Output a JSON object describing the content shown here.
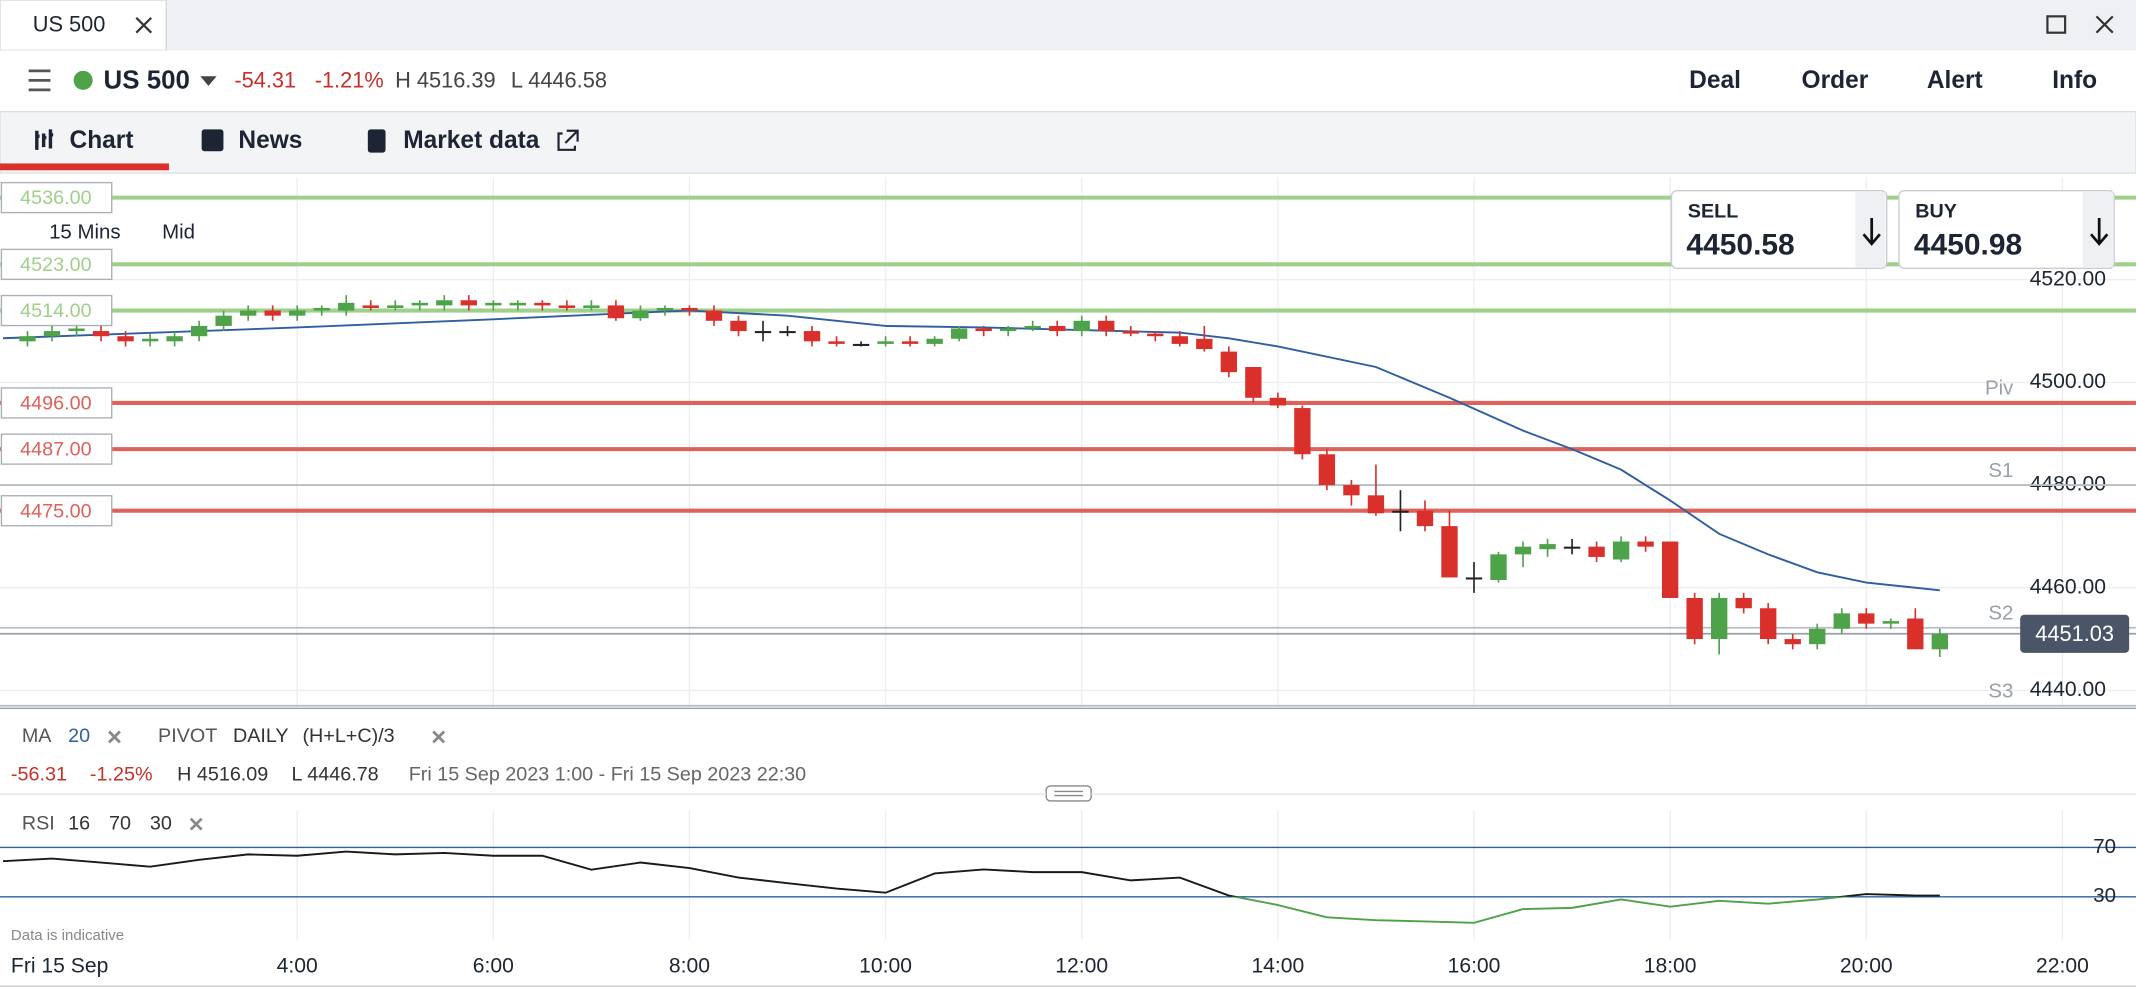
{
  "window": {
    "tab": "US 500"
  },
  "header": {
    "market": "US 500",
    "change": "-54.31",
    "change_pct": "-1.21%",
    "high": "H 4516.39",
    "low": "L 4446.58",
    "actions": [
      "Deal",
      "Order",
      "Alert",
      "Info"
    ]
  },
  "tabs": [
    "Chart",
    "News",
    "Market data"
  ],
  "chart_data": [
    {
      "type": "candlestick",
      "interval": "15 Mins",
      "price_type": "Mid",
      "up_color": "#4ea24a",
      "down_color": "#d9302c",
      "doji_color": "#222222",
      "x": [
        1.25,
        1.5,
        1.75,
        2,
        2.25,
        2.5,
        2.75,
        3,
        3.25,
        3.5,
        3.75,
        4,
        4.25,
        4.5,
        4.75,
        5,
        5.25,
        5.5,
        5.75,
        6,
        6.25,
        6.5,
        6.75,
        7,
        7.25,
        7.5,
        7.75,
        8,
        8.25,
        8.5,
        8.75,
        9,
        9.25,
        9.5,
        9.75,
        10,
        10.25,
        10.5,
        10.75,
        11,
        11.25,
        11.5,
        11.75,
        12,
        12.25,
        12.5,
        12.75,
        13,
        13.25,
        13.5,
        13.75,
        14,
        14.25,
        14.5,
        14.75,
        15,
        15.25,
        15.5,
        15.75,
        16,
        16.25,
        16.5,
        16.75,
        17,
        17.25,
        17.5,
        17.75,
        18,
        18.25,
        18.5,
        18.75,
        19,
        19.25,
        19.5,
        19.75,
        20,
        20.25,
        20.5,
        20.75
      ],
      "open": [
        4508,
        4509,
        4510,
        4510,
        4509,
        4508,
        4508,
        4509,
        4511,
        4513,
        4514,
        4513,
        4514,
        4514,
        4515,
        4514.5,
        4515,
        4515,
        4516,
        4515,
        4515,
        4515.5,
        4515,
        4514.5,
        4515,
        4512.5,
        4514,
        4514.5,
        4514,
        4512,
        4510,
        4510,
        4510,
        4508,
        4507.5,
        4507.5,
        4508,
        4507.5,
        4508.5,
        4510.5,
        4510,
        4510.5,
        4511,
        4510,
        4512,
        4510,
        4509.5,
        4509,
        4508.5,
        4506,
        4503,
        4497,
        4495,
        4486,
        4480,
        4478,
        4475,
        4475,
        4472,
        4462,
        4461.5,
        4466.5,
        4467.5,
        4468,
        4468,
        4465.5,
        4469,
        4469,
        4458,
        4450,
        4458,
        4456,
        4450,
        4449,
        4452,
        4455,
        4453,
        4454,
        4448
      ],
      "high": [
        4510,
        4511,
        4511,
        4511,
        4510,
        4509.5,
        4510,
        4512,
        4514,
        4515,
        4515,
        4515,
        4515,
        4517,
        4516,
        4516,
        4516,
        4517,
        4517,
        4516,
        4516,
        4516,
        4516,
        4516,
        4516,
        4515,
        4515,
        4515,
        4515,
        4513,
        4512,
        4511,
        4511,
        4509,
        4508,
        4509,
        4509,
        4509,
        4511,
        4511,
        4511,
        4512,
        4512,
        4513,
        4513,
        4511,
        4510,
        4510,
        4511,
        4507,
        4503,
        4498,
        4495.5,
        4487,
        4481,
        4484,
        4479,
        4477,
        4475,
        4465,
        4467,
        4469,
        4469.5,
        4469.5,
        4469,
        4470,
        4470,
        4469,
        4459,
        4459,
        4459,
        4457,
        4451,
        4453,
        4456,
        4456,
        4454,
        4456,
        4452
      ],
      "low": [
        4507,
        4508,
        4509,
        4508,
        4507,
        4507,
        4507,
        4508,
        4510,
        4512,
        4512,
        4512,
        4513,
        4513,
        4514,
        4514,
        4514,
        4514,
        4514,
        4514,
        4514,
        4514,
        4514,
        4514,
        4512,
        4512,
        4513,
        4513,
        4511,
        4509,
        4508,
        4509,
        4507,
        4507,
        4507,
        4507,
        4507,
        4507,
        4508,
        4509,
        4509,
        4510,
        4509,
        4509,
        4509,
        4509,
        4508,
        4507,
        4506,
        4501,
        4496,
        4495,
        4485,
        4479,
        4476,
        4474,
        4471,
        4471,
        4462,
        4459,
        4461,
        4464,
        4466,
        4466.5,
        4465,
        4465,
        4467,
        4458,
        4449,
        4447,
        4455,
        4449,
        4448,
        4448,
        4451,
        4452,
        4452,
        4448,
        4446.5
      ],
      "close": [
        4509,
        4510,
        4510.5,
        4509,
        4508,
        4508.5,
        4509,
        4511,
        4513,
        4514,
        4513,
        4514,
        4514.5,
        4515.5,
        4514.5,
        4515,
        4515.5,
        4516,
        4515,
        4515.5,
        4515.5,
        4515,
        4514.5,
        4515,
        4512.5,
        4514,
        4514.5,
        4514,
        4512,
        4510,
        4510,
        4510,
        4508,
        4507.5,
        4507.5,
        4508,
        4507.5,
        4508.5,
        4510.5,
        4510,
        4510.5,
        4511,
        4510,
        4512,
        4510,
        4509.5,
        4509,
        4507.5,
        4506.5,
        4502,
        4497,
        4495.5,
        4486,
        4480,
        4478,
        4474.5,
        4475,
        4472,
        4462,
        4462,
        4466.5,
        4468,
        4468.5,
        4468,
        4466,
        4469,
        4468,
        4458,
        4450,
        4458,
        4456,
        4450,
        4449,
        4452,
        4455,
        4453,
        4453.5,
        4448,
        4451
      ],
      "xlim": [
        0.97,
        22.75
      ],
      "xticks": [
        {
          "value": 4,
          "label": "4:00"
        },
        {
          "value": 6,
          "label": "6:00"
        },
        {
          "value": 8,
          "label": "8:00"
        },
        {
          "value": 10,
          "label": "10:00"
        },
        {
          "value": 12,
          "label": "12:00"
        },
        {
          "value": 14,
          "label": "14:00"
        },
        {
          "value": 16,
          "label": "16:00"
        },
        {
          "value": 18,
          "label": "18:00"
        },
        {
          "value": 20,
          "label": "20:00"
        },
        {
          "value": 22,
          "label": "22:00"
        }
      ],
      "ylim": [
        4436.5,
        4540
      ],
      "yticks": [
        {
          "value": 4440,
          "label": "4440.00"
        },
        {
          "value": 4460,
          "label": "4460.00"
        },
        {
          "value": 4480,
          "label": "4480.00"
        },
        {
          "value": 4500,
          "label": "4500.00"
        },
        {
          "value": 4520,
          "label": "4520.00"
        }
      ],
      "grid": true,
      "ma": {
        "name": "MA",
        "period": 20,
        "color": "#2f5f9e",
        "x": [
          1,
          4,
          6,
          7.5,
          8,
          9,
          10,
          11,
          12,
          13,
          13.5,
          14,
          15,
          15.75,
          16.5,
          17,
          17.5,
          18,
          18.5,
          19,
          19.5,
          20,
          20.75
        ],
        "values": [
          4508.6,
          4510.7,
          4512.3,
          4513.6,
          4514,
          4513,
          4511,
          4510.7,
          4510.2,
          4509.7,
          4508.6,
          4507,
          4503,
          4497,
          4490.6,
          4487,
          4483,
          4477,
          4470.5,
          4466.5,
          4463,
          4461,
          4459.5
        ]
      },
      "pivot": {
        "name": "PIVOT",
        "period": "DAILY",
        "formula": "(H+L+C)/3",
        "color": "#b8bcc4",
        "levels": [
          {
            "name": "Piv",
            "value": 4496
          },
          {
            "name": "S1",
            "value": 4480
          },
          {
            "name": "S2",
            "value": 4452.2
          },
          {
            "name": "S3",
            "value": 4437
          }
        ]
      },
      "alert_levels": [
        {
          "value": 4536,
          "label": "4536.00",
          "color": "#9fd08a"
        },
        {
          "value": 4523,
          "label": "4523.00",
          "color": "#9fd08a"
        },
        {
          "value": 4514,
          "label": "4514.00",
          "color": "#9fd08a"
        },
        {
          "value": 4496,
          "label": "4496.00",
          "color": "#e0605a"
        },
        {
          "value": 4487,
          "label": "4487.00",
          "color": "#e0605a"
        },
        {
          "value": 4475,
          "label": "4475.00",
          "color": "#e0605a"
        }
      ],
      "last_price": {
        "value": 4451.03,
        "label": "4451.03"
      },
      "sell": {
        "label": "SELL",
        "price": "4450.58"
      },
      "buy": {
        "label": "BUY",
        "price": "4450.98"
      },
      "summary": {
        "change": "-56.31",
        "change_pct": "-1.25%",
        "high": "H 4516.09",
        "low": "L 4446.78",
        "range": "Fri 15 Sep 2023 1:00 - Fri 15 Sep 2023 22:30"
      },
      "date_label": "Fri 15 Sep",
      "note": "Data is indicative"
    },
    {
      "type": "line",
      "name": "RSI",
      "period": 16,
      "color": "#1a1a1a",
      "below_color": "#4ea24a",
      "level_color": "#2f5f9e",
      "x": [
        1,
        1.5,
        2,
        2.5,
        3,
        3.5,
        4,
        4.5,
        5,
        5.5,
        6,
        6.5,
        7,
        7.5,
        8,
        8.5,
        9,
        9.5,
        10,
        10.5,
        11,
        11.5,
        12,
        12.5,
        13,
        13.5,
        14,
        14.5,
        15,
        15.5,
        16,
        16.5,
        17,
        17.5,
        18,
        18.5,
        19,
        19.5,
        20,
        20.5,
        20.75
      ],
      "values": [
        58.9,
        61,
        57.8,
        54.4,
        60,
        64.4,
        63.3,
        66.7,
        64.4,
        65.6,
        63.3,
        63.3,
        52,
        57.8,
        53.3,
        45.6,
        41,
        36.7,
        33.3,
        48.9,
        52.2,
        50,
        50,
        43.3,
        45.6,
        31,
        23.3,
        13.3,
        11,
        10,
        8.9,
        20,
        21,
        27.8,
        22,
        26.7,
        24.4,
        27.8,
        32.2,
        31,
        31
      ],
      "ylim": [
        -5,
        100
      ],
      "yticks": [
        30,
        70
      ]
    }
  ]
}
